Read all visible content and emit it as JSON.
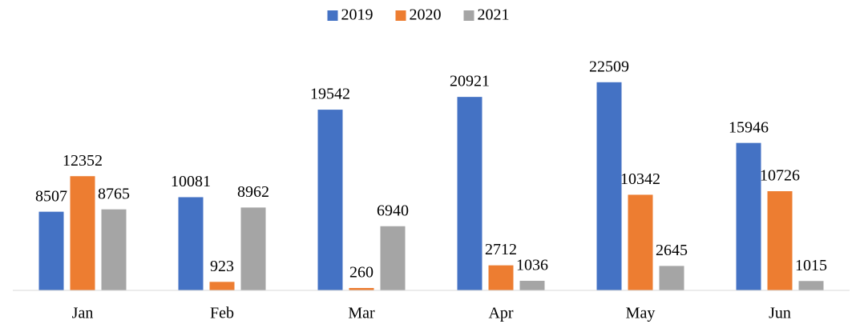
{
  "chart_data": {
    "type": "bar",
    "categories": [
      "Jan",
      "Feb",
      "Mar",
      "Apr",
      "May",
      "Jun"
    ],
    "series": [
      {
        "name": "2019",
        "color": "#4472c4",
        "values": [
          8507,
          10081,
          19542,
          20921,
          22509,
          15946
        ]
      },
      {
        "name": "2020",
        "color": "#ed7d31",
        "values": [
          12352,
          923,
          260,
          2712,
          10342,
          10726
        ]
      },
      {
        "name": "2021",
        "color": "#a5a5a5",
        "values": [
          8765,
          8962,
          6940,
          1036,
          2645,
          1015
        ]
      }
    ],
    "ylim": [
      0,
      25000
    ],
    "legend": "top"
  }
}
